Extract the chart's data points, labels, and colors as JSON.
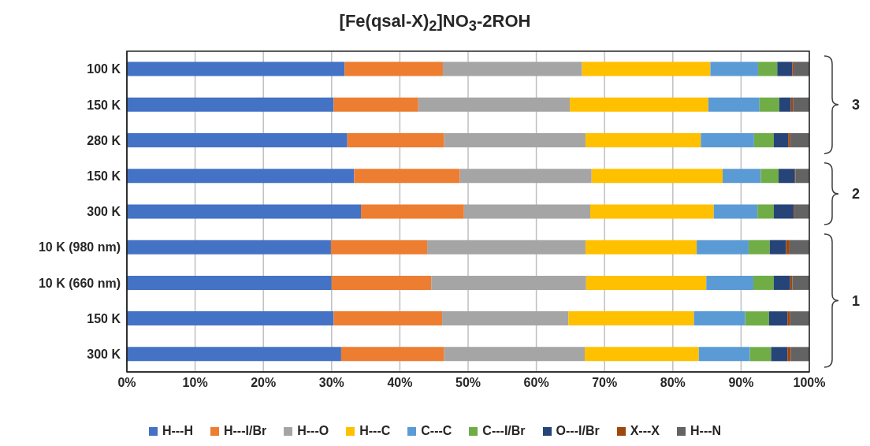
{
  "chart_data": {
    "type": "bar",
    "orientation": "horizontal",
    "stacked": true,
    "title": "[Fe(qsal-X)$_{2}$]NO$_{3}$-2ROH",
    "categories": [
      "100 K",
      "150 K",
      "280 K",
      "150 K",
      "300 K",
      "10 K (980 nm)",
      "10 K (660 nm)",
      "150 K",
      "300 K"
    ],
    "series": [
      {
        "name": "H---H",
        "color": "#4472c4",
        "values": [
          31.9,
          30.3,
          32.3,
          33.3,
          34.3,
          29.9,
          30.0,
          30.3,
          31.4
        ]
      },
      {
        "name": "H---I/Br",
        "color": "#ed7d31",
        "values": [
          14.4,
          12.4,
          14.2,
          15.5,
          15.1,
          14.1,
          14.6,
          15.9,
          15.1
        ]
      },
      {
        "name": "H---O",
        "color": "#a5a5a5",
        "values": [
          20.4,
          22.2,
          20.7,
          19.3,
          18.5,
          23.2,
          22.7,
          18.5,
          20.6
        ]
      },
      {
        "name": "H---C",
        "color": "#ffc000",
        "values": [
          18.8,
          20.3,
          16.9,
          19.2,
          18.1,
          16.3,
          17.6,
          18.4,
          16.7
        ]
      },
      {
        "name": "C---C",
        "color": "#5b9bd5",
        "values": [
          7.0,
          7.5,
          7.8,
          5.6,
          6.4,
          7.6,
          6.9,
          7.5,
          7.5
        ]
      },
      {
        "name": "C---I/Br",
        "color": "#70ad47",
        "values": [
          2.8,
          2.9,
          2.9,
          2.6,
          2.4,
          3.1,
          3.0,
          3.5,
          3.1
        ]
      },
      {
        "name": "O---I/Br",
        "color": "#264478",
        "values": [
          2.2,
          1.7,
          2.1,
          2.4,
          2.9,
          2.4,
          2.4,
          2.7,
          2.4
        ]
      },
      {
        "name": "X---X",
        "color": "#9e480e",
        "values": [
          0.2,
          0.3,
          0.3,
          0.1,
          0.1,
          0.5,
          0.3,
          0.4,
          0.5
        ]
      },
      {
        "name": "H---N",
        "color": "#636363",
        "values": [
          2.3,
          2.4,
          2.8,
          2.0,
          2.2,
          2.9,
          2.5,
          2.8,
          2.7
        ]
      }
    ],
    "xlim": [
      0,
      100
    ],
    "xticks": [
      {
        "value": 0,
        "label": "0%"
      },
      {
        "value": 10,
        "label": "10%"
      },
      {
        "value": 20,
        "label": "20%"
      },
      {
        "value": 30,
        "label": "30%"
      },
      {
        "value": 40,
        "label": "40%"
      },
      {
        "value": 50,
        "label": "50%"
      },
      {
        "value": 60,
        "label": "60%"
      },
      {
        "value": 70,
        "label": "70%"
      },
      {
        "value": 80,
        "label": "80%"
      },
      {
        "value": 90,
        "label": "90%"
      },
      {
        "value": 100,
        "label": "100%"
      }
    ],
    "grid": "x",
    "legend": "bottom",
    "annotations": [
      "3",
      "2",
      "1"
    ]
  }
}
